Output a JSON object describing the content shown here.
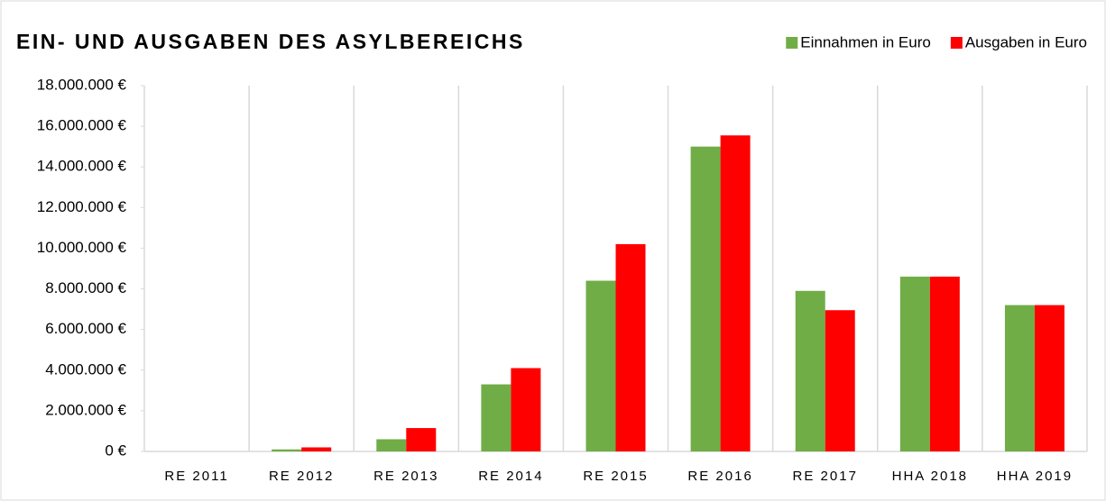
{
  "chart_data": {
    "type": "bar",
    "title": "EIN- UND AUSGABEN DES ASYLBEREICHS",
    "categories": [
      "RE 2011",
      "RE 2012",
      "RE 2013",
      "RE 2014",
      "RE 2015",
      "RE 2016",
      "RE 2017",
      "HHA 2018",
      "HHA 2019"
    ],
    "series": [
      {
        "name": "Einnahmen in Euro",
        "color": "#70ad47",
        "values": [
          0,
          100000,
          600000,
          3300000,
          8400000,
          15000000,
          7900000,
          8600000,
          7200000
        ]
      },
      {
        "name": "Ausgaben in Euro",
        "color": "#ff0000",
        "values": [
          0,
          200000,
          1150000,
          4100000,
          10200000,
          15550000,
          6950000,
          8600000,
          7200000
        ]
      }
    ],
    "ylim": [
      0,
      18000000
    ],
    "yticks": [
      {
        "value": 0,
        "label": "0 €"
      },
      {
        "value": 2000000,
        "label": "2.000.000 €"
      },
      {
        "value": 4000000,
        "label": "4.000.000 €"
      },
      {
        "value": 6000000,
        "label": "6.000.000 €"
      },
      {
        "value": 8000000,
        "label": "8.000.000 €"
      },
      {
        "value": 10000000,
        "label": "10.000.000 €"
      },
      {
        "value": 12000000,
        "label": "12.000.000 €"
      },
      {
        "value": 14000000,
        "label": "14.000.000 €"
      },
      {
        "value": 16000000,
        "label": "16.000.000 €"
      },
      {
        "value": 18000000,
        "label": "18.000.000 €"
      }
    ],
    "legend": "top-right"
  }
}
